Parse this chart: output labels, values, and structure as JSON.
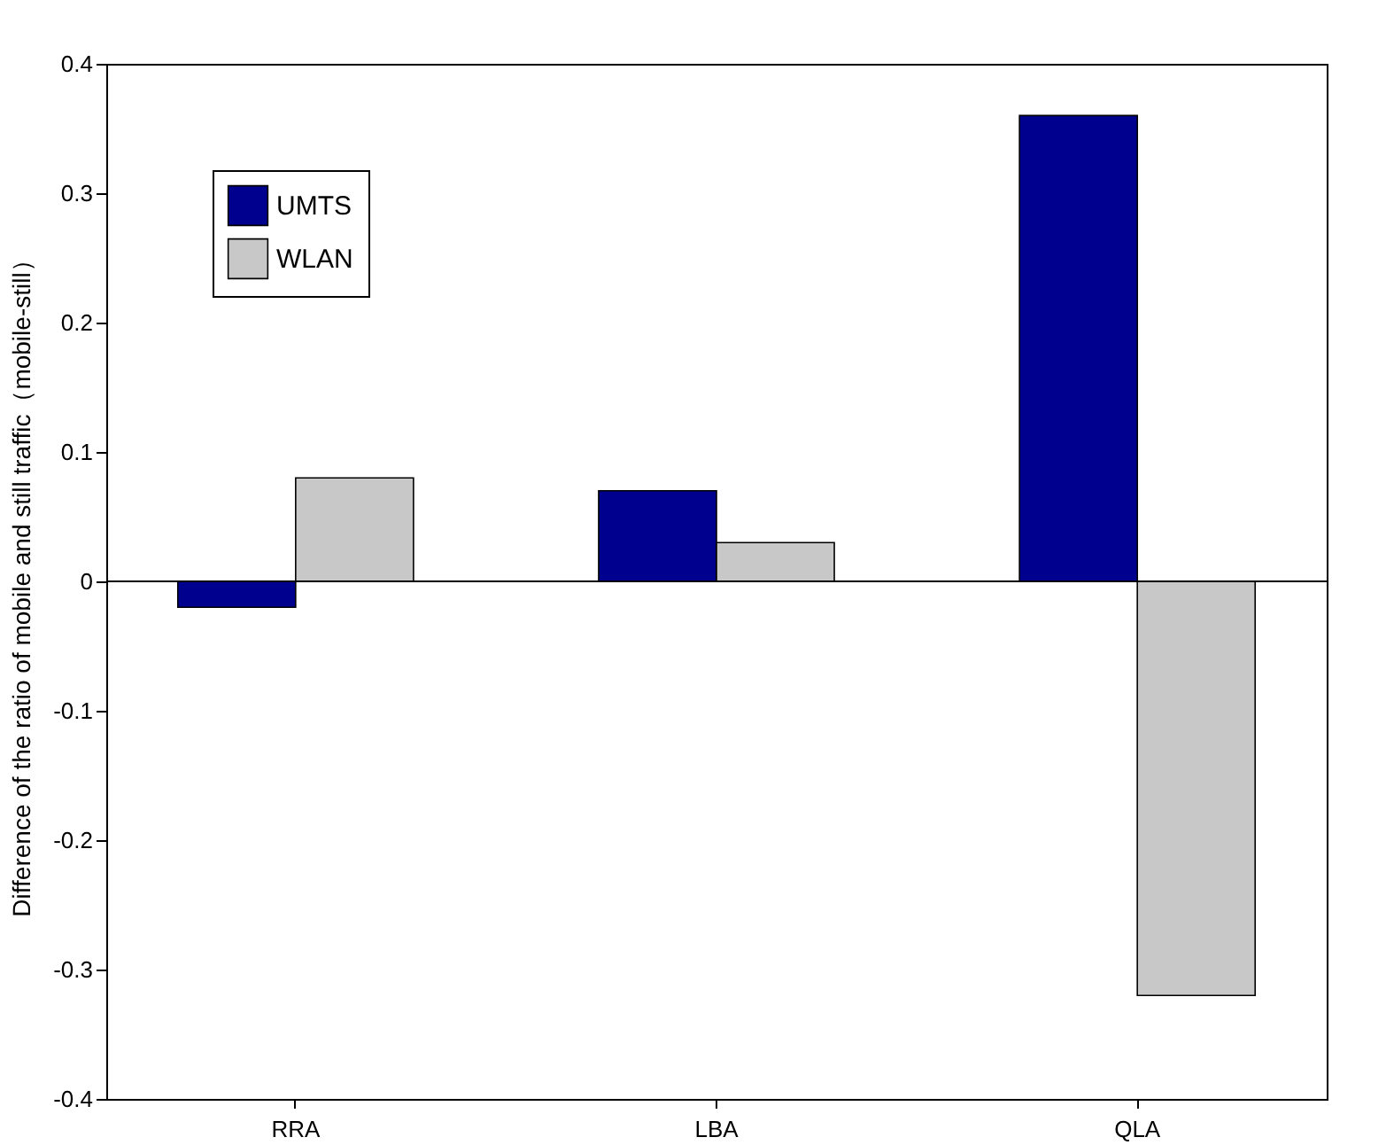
{
  "chart_data": {
    "type": "bar",
    "ylabel": "Difference of the ratio of mobile and still traffic（mobile-still）",
    "categories": [
      "RRA",
      "LBA",
      "QLA"
    ],
    "series": [
      {
        "name": "UMTS",
        "color": "#00008f",
        "values": [
          -0.02,
          0.07,
          0.36
        ]
      },
      {
        "name": "WLAN",
        "color": "#c8c8c8",
        "values": [
          0.08,
          0.03,
          -0.32
        ]
      }
    ],
    "ylim": [
      -0.4,
      0.4
    ],
    "yticks": [
      -0.4,
      -0.3,
      -0.2,
      -0.1,
      0,
      0.1,
      0.2,
      0.3,
      0.4
    ],
    "ref_lines": [
      {
        "axis": "y",
        "value": 0,
        "color": "#000000"
      }
    ],
    "grid": false,
    "legend": "top left"
  }
}
